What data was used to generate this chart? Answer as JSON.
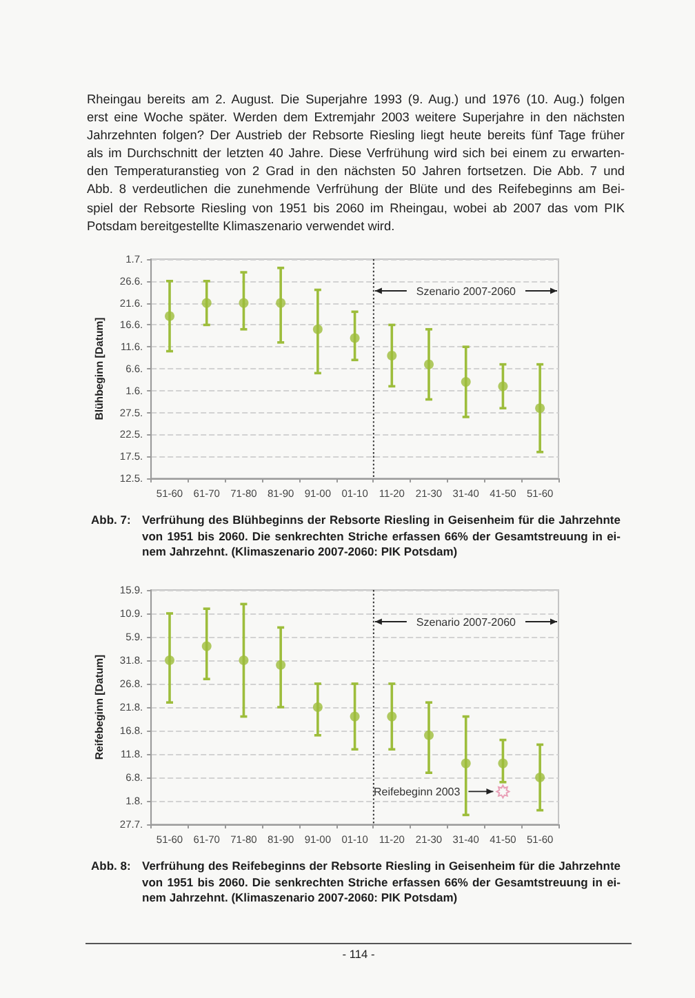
{
  "chart_data": [
    {
      "type": "other",
      "annotations": [
        "Rheingau bereits am 2. August. Die Superjahre 1993 (9. Aug.) und 1976 (10. Aug.) folgen\nerst eine Woche später. Werden dem Extremjahr 2003 weitere Superjahre in den nächsten\nJahrzehnten folgen? Der Austrieb der Rebsorte Riesling liegt heute bereits fünf Tage früher\nals im Durchschnitt der letzten 40 Jahre. Diese Verfrühung wird sich bei einem zu erwarten-\nden Temperaturanstieg von 2 Grad in den nächsten 50 Jahren fortsetzen. Die Abb. 7 und\nAbb. 8 verdeutlichen die zunehmende Verfrühung der Blüte und des Reifebeginns am Bei-\nspiel der Rebsorte Riesling von 1951 bis 2060 im Rheingau, wobei ab 2007 das vom PIK\nPotsdam bereitgestellte Klimaszenario verwendet wird."
      ]
    },
    {
      "type": "scatter",
      "ylabel": "Blühbeginn [Datum]",
      "categories": [
        "51-60",
        "61-70",
        "71-80",
        "81-90",
        "91-00",
        "01-10",
        "11-20",
        "21-30",
        "31-40",
        "41-50",
        "51-60"
      ],
      "series": [
        {
          "color": "#9dbd3b",
          "values": [
            11491,
            11494,
            11494,
            11494,
            11488,
            11486,
            11482,
            11480,
            11476,
            11475,
            11470
          ],
          "errors": [
            [
              11483,
              11499
            ],
            [
              11489,
              11499
            ],
            [
              11488,
              11501
            ],
            [
              11485,
              11502
            ],
            [
              11478,
              11497
            ],
            [
              11481,
              11492
            ],
            [
              11475,
              11489
            ],
            [
              11472,
              11488
            ],
            [
              11468,
              11484
            ],
            [
              11470,
              11480
            ],
            [
              11460,
              11480
            ]
          ]
        }
      ],
      "marker": "circle",
      "ylim": [
        "--05-12",
        "--07-01"
      ],
      "yticks": [
        {
          "value": "--05-12",
          "label": "12.5."
        },
        {
          "value": "--05-17",
          "label": "17.5."
        },
        {
          "value": "--05-22",
          "label": "22.5."
        },
        {
          "value": "--05-27",
          "label": "27.5."
        },
        {
          "value": "--06-01",
          "label": "1.6."
        },
        {
          "value": "--06-06",
          "label": "6.6."
        },
        {
          "value": "--06-11",
          "label": "11.6."
        },
        {
          "value": "--06-16",
          "label": "16.6."
        },
        {
          "value": "--06-21",
          "label": "21.6."
        },
        {
          "value": "--06-26",
          "label": "26.6."
        },
        {
          "value": "--07-01",
          "label": "1.7."
        }
      ],
      "grid": "y",
      "ref_lines": [
        {
          "axis": "x",
          "value": "01-10",
          "label": "Szenario 2007-2060",
          "line_style": "dotted",
          "color": "#333333"
        }
      ],
      "annotations": [
        "Abb. 7:",
        "Verfrühung des Blühbeginns der Rebsorte Riesling in Geisenheim für die Jahrzehnte\nvon 1951 bis 2060. Die senkrechten Striche erfassen 66% der Gesamtstreuung in ei-\nnem Jahrzehnt. (Klimaszenario 2007-2060: PIK Potsdam)"
      ]
    },
    {
      "type": "scatter",
      "ylabel": "Reifebeginn [Datum]",
      "categories": [
        "51-60",
        "61-70",
        "71-80",
        "81-90",
        "91-00",
        "01-10",
        "11-20",
        "21-30",
        "31-40",
        "41-50",
        "51-60"
      ],
      "series": [
        {
          "color": "#9dbd3b",
          "values": [
            11565,
            11568,
            11565,
            11564,
            11555,
            11553,
            11553,
            11549,
            11543,
            11543,
            11540
          ],
          "errors": [
            [
              11556,
              11575
            ],
            [
              11561,
              11576
            ],
            [
              11553,
              11577
            ],
            [
              11555,
              11572
            ],
            [
              11549,
              11560
            ],
            [
              11546,
              11560
            ],
            [
              11546,
              11560
            ],
            [
              11541,
              11556
            ],
            [
              11532,
              11553
            ],
            [
              11539,
              11548
            ],
            [
              11533,
              11547
            ]
          ]
        },
        {
          "type": "scatter",
          "name": "Reifebeginn 2003",
          "x": [
            "41-50"
          ],
          "values": [
            11537
          ],
          "color": "#e58aa8",
          "marker": "star"
        }
      ],
      "marker": "circle",
      "ylim": [
        "--07-27",
        "--09-15"
      ],
      "yticks": [
        {
          "value": "--07-27",
          "label": "27.7."
        },
        {
          "value": "--08-01",
          "label": "1.8."
        },
        {
          "value": "--08-06",
          "label": "6.8."
        },
        {
          "value": "--08-11",
          "label": "11.8."
        },
        {
          "value": "--08-16",
          "label": "16.8."
        },
        {
          "value": "--08-21",
          "label": "21.8."
        },
        {
          "value": "--08-26",
          "label": "26.8."
        },
        {
          "value": "--08-31",
          "label": "31.8."
        },
        {
          "value": "--09-05",
          "label": "5.9."
        },
        {
          "value": "--09-10",
          "label": "10.9."
        },
        {
          "value": "--09-15",
          "label": "15.9."
        }
      ],
      "grid": "y",
      "ref_lines": [
        {
          "axis": "x",
          "value": "01-10",
          "label": "Szenario 2007-2060",
          "line_style": "dotted",
          "color": "#333333"
        }
      ],
      "annotations": [
        "Abb. 8:",
        "Verfrühung des Reifebeginns der Rebsorte Riesling in Geisenheim für die Jahrzehnte\nvon 1951 bis 2060. Die senkrechten Striche erfassen 66% der Gesamtstreuung in ei-\nnem Jahrzehnt. (Klimaszenario 2007-2060: PIK Potsdam)"
      ]
    },
    {
      "type": "other",
      "annotations": [
        "- 114 -"
      ]
    }
  ]
}
